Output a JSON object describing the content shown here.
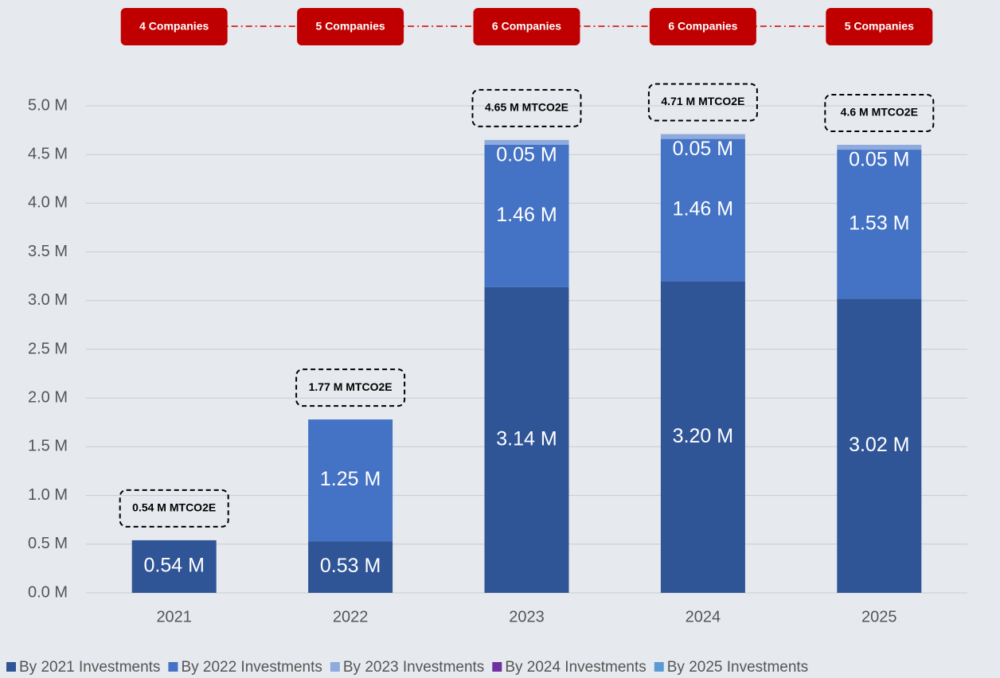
{
  "chart_data": {
    "type": "stacked_bar",
    "categories": [
      "2021",
      "2022",
      "2023",
      "2024",
      "2025"
    ],
    "series": [
      {
        "name": "By 2021 Investments",
        "color": "#2f5597",
        "values": [
          0.54,
          0.53,
          3.14,
          3.2,
          3.02
        ],
        "value_labels": [
          "0.54 M",
          "0.53 M",
          "3.14 M",
          "3.20 M",
          "3.02 M"
        ]
      },
      {
        "name": "By 2022 Investments",
        "color": "#4472c4",
        "values": [
          null,
          1.25,
          1.46,
          1.46,
          1.53
        ],
        "value_labels": [
          null,
          "1.25 M",
          "1.46 M",
          "1.46 M",
          "1.53 M"
        ]
      },
      {
        "name": "By 2023 Investments",
        "color": "#8faadc",
        "values": [
          null,
          null,
          0.05,
          0.05,
          0.05
        ],
        "value_labels": [
          null,
          null,
          "0.05 M",
          "0.05 M",
          "0.05 M"
        ]
      },
      {
        "name": "By 2024 Investments",
        "color": "#7030a0",
        "values": [
          null,
          null,
          null,
          null,
          null
        ]
      },
      {
        "name": "By 2025 Investments",
        "color": "#5b9bd5",
        "values": [
          null,
          null,
          null,
          null,
          null
        ]
      }
    ],
    "total_labels": [
      "0.54 M MTCO2E",
      "1.77 M MTCO2E",
      "4.65 M MTCO2E",
      "4.71 M MTCO2E",
      "4.6 M MTCO2E"
    ],
    "company_labels": [
      "4 Companies",
      "5 Companies",
      "6 Companies",
      "6 Companies",
      "5 Companies"
    ],
    "ylim": [
      0,
      5
    ],
    "yticks": [
      {
        "value": 0,
        "label": "0.0 M"
      },
      {
        "value": 0.5,
        "label": "0.5 M"
      },
      {
        "value": 1,
        "label": "1.0 M"
      },
      {
        "value": 1.5,
        "label": "1.5 M"
      },
      {
        "value": 2,
        "label": "2.0 M"
      },
      {
        "value": 2.5,
        "label": "2.5 M"
      },
      {
        "value": 3,
        "label": "3.0 M"
      },
      {
        "value": 3.5,
        "label": "3.5 M"
      },
      {
        "value": 4,
        "label": "4.0 M"
      },
      {
        "value": 4.5,
        "label": "4.5 M"
      },
      {
        "value": 5,
        "label": "5.0 M"
      }
    ],
    "grid": true
  }
}
